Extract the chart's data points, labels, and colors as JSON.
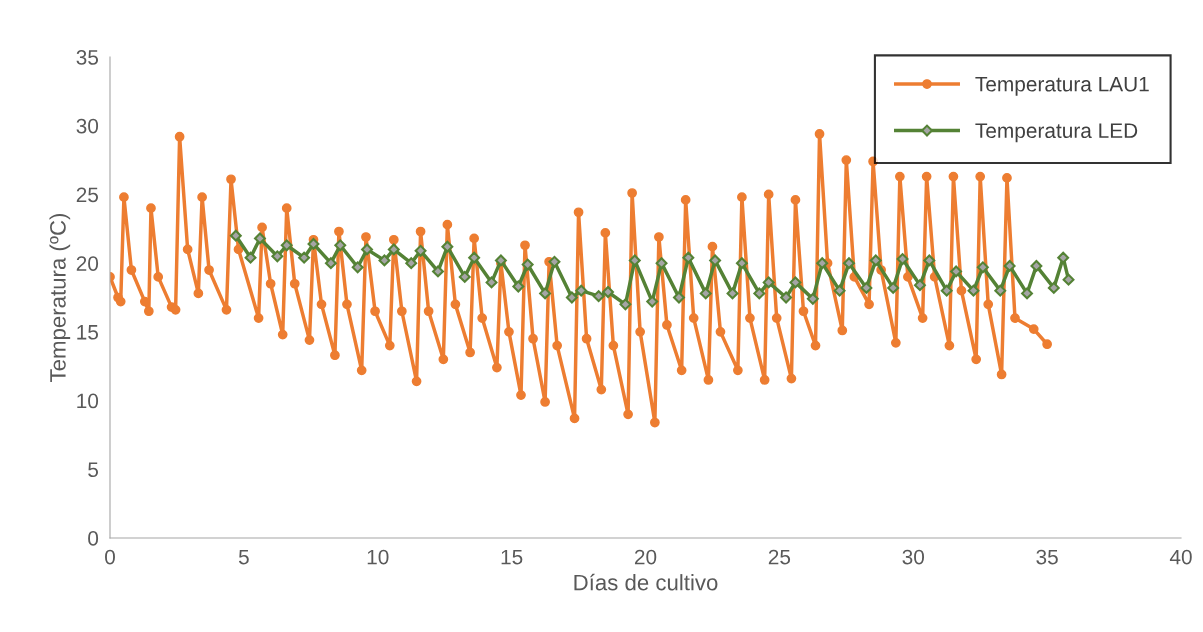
{
  "chart_data": {
    "type": "line",
    "xlabel": "Días de cultivo",
    "ylabel": "Temperatura (ºC)",
    "xlim": [
      0,
      40
    ],
    "xticks": [
      0,
      5,
      10,
      15,
      20,
      25,
      30,
      35,
      40
    ],
    "ylim": [
      0,
      35
    ],
    "yticks": [
      0,
      5,
      10,
      15,
      20,
      25,
      30,
      35
    ],
    "grid": false,
    "legend": "top right",
    "series": [
      {
        "name": "Temperatura LAU1",
        "color": "#ed7d31",
        "marker": "circle",
        "x": [
          0,
          0.3,
          0.4,
          0.52,
          0.8,
          1.3,
          1.45,
          1.53,
          1.8,
          2.3,
          2.45,
          2.6,
          2.9,
          3.3,
          3.44,
          3.7,
          4.35,
          4.52,
          4.8,
          5.55,
          5.68,
          6.0,
          6.45,
          6.6,
          6.9,
          7.45,
          7.6,
          7.9,
          8.4,
          8.55,
          8.85,
          9.4,
          9.56,
          9.9,
          10.45,
          10.6,
          10.9,
          11.45,
          11.6,
          11.9,
          12.45,
          12.6,
          12.9,
          13.45,
          13.6,
          13.9,
          14.45,
          14.6,
          14.9,
          15.35,
          15.5,
          15.8,
          16.25,
          16.4,
          16.7,
          17.35,
          17.5,
          17.8,
          18.35,
          18.5,
          18.8,
          19.35,
          19.5,
          19.8,
          20.35,
          20.5,
          20.8,
          21.35,
          21.5,
          21.8,
          22.35,
          22.5,
          22.8,
          23.45,
          23.6,
          23.9,
          24.45,
          24.6,
          24.9,
          25.45,
          25.6,
          25.9,
          26.35,
          26.5,
          26.8,
          27.35,
          27.5,
          27.8,
          28.35,
          28.5,
          28.8,
          29.35,
          29.5,
          29.8,
          30.35,
          30.5,
          30.8,
          31.35,
          31.5,
          31.8,
          32.35,
          32.5,
          32.8,
          33.3,
          33.5,
          33.8,
          34.5,
          35.0
        ],
        "values": [
          19.0,
          17.5,
          17.2,
          24.8,
          19.5,
          17.2,
          16.5,
          24.0,
          19,
          16.8,
          16.6,
          29.2,
          21,
          17.8,
          24.8,
          19.5,
          16.6,
          26.1,
          21,
          16,
          22.6,
          18.5,
          14.8,
          24.0,
          18.5,
          14.4,
          21.7,
          17,
          13.3,
          22.3,
          17,
          12.2,
          21.9,
          16.5,
          14,
          21.7,
          16.5,
          11.4,
          22.3,
          16.5,
          13,
          22.8,
          17,
          13.5,
          21.8,
          16,
          12.4,
          20,
          15,
          10.4,
          21.3,
          14.5,
          9.9,
          20.1,
          14,
          8.7,
          23.7,
          14.5,
          10.8,
          22.2,
          14,
          9.0,
          25.1,
          15,
          8.4,
          21.9,
          15.5,
          12.2,
          24.6,
          16,
          11.5,
          21.2,
          15,
          12.2,
          24.8,
          16,
          11.5,
          25.0,
          16,
          11.6,
          24.6,
          16.5,
          14,
          29.4,
          20,
          15.1,
          27.5,
          19,
          17,
          27.4,
          19.5,
          14.2,
          26.3,
          19,
          16,
          26.3,
          19,
          14,
          26.3,
          18,
          13,
          26.3,
          17,
          11.9,
          26.2,
          16,
          15.2,
          14.1
        ]
      },
      {
        "name": "Temperatura LED",
        "color": "#548235",
        "marker": "diamond",
        "x": [
          4.7,
          5.25,
          5.6,
          6.25,
          6.6,
          7.25,
          7.6,
          8.25,
          8.6,
          9.25,
          9.6,
          10.25,
          10.6,
          11.25,
          11.6,
          12.25,
          12.6,
          13.25,
          13.6,
          14.25,
          14.6,
          15.25,
          15.6,
          16.25,
          16.6,
          17.25,
          17.6,
          18.25,
          18.6,
          19.25,
          19.6,
          20.25,
          20.6,
          21.25,
          21.6,
          22.25,
          22.6,
          23.25,
          23.6,
          24.25,
          24.6,
          25.25,
          25.6,
          26.25,
          26.6,
          27.25,
          27.6,
          28.25,
          28.6,
          29.25,
          29.6,
          30.25,
          30.6,
          31.25,
          31.6,
          32.25,
          32.6,
          33.25,
          33.6,
          34.25,
          34.6,
          35.25,
          35.6,
          35.8
        ],
        "values": [
          22.0,
          20.4,
          21.8,
          20.5,
          21.3,
          20.4,
          21.4,
          20.0,
          21.3,
          19.7,
          21.0,
          20.2,
          21.0,
          20.0,
          20.9,
          19.4,
          21.2,
          19.0,
          20.4,
          18.6,
          20.2,
          18.3,
          19.9,
          17.8,
          20.1,
          17.5,
          18.0,
          17.6,
          17.9,
          17.0,
          20.2,
          17.2,
          20.0,
          17.5,
          20.4,
          17.8,
          20.2,
          17.8,
          20.0,
          17.8,
          18.6,
          17.5,
          18.6,
          17.4,
          20.0,
          18.0,
          20.0,
          18.2,
          20.2,
          18.2,
          20.3,
          18.4,
          20.2,
          18.0,
          19.4,
          18.0,
          19.7,
          18.0,
          19.8,
          17.8,
          19.8,
          18.2,
          20.4,
          18.8
        ]
      }
    ]
  }
}
